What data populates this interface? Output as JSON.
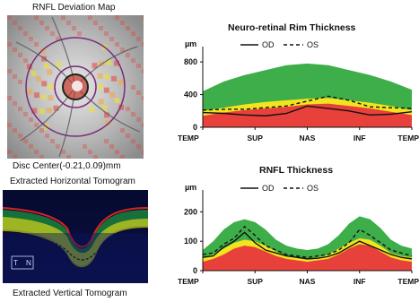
{
  "left_panel": {
    "deviation_map_title": "RNFL Deviation Map",
    "disc_center_label": "Disc Center(-0.21,0.09)mm",
    "horizontal_tomogram_title": "Extracted Horizontal Tomogram",
    "vertical_tomogram_title": "Extracted Vertical Tomogram",
    "orientation_t": "T",
    "orientation_n": "N"
  },
  "colors": {
    "normal_band": "#3dae49",
    "borderline_band": "#f2e41e",
    "abnormal_band": "#e8403a",
    "trace": "#111111",
    "circle": "#7a2a7a"
  },
  "chart_data": [
    {
      "type": "area",
      "title": "Neuro-retinal Rim Thickness",
      "ylabel": "µm",
      "categories": [
        "TEMP",
        "SUP",
        "NAS",
        "INF",
        "TEMP"
      ],
      "yticks": [
        0,
        400,
        800
      ],
      "ylim": [
        0,
        900
      ],
      "legend": [
        {
          "name": "OD",
          "style": "solid"
        },
        {
          "name": "OS",
          "style": "dashed"
        }
      ],
      "legend_position": "top",
      "x": [
        0,
        10,
        20,
        30,
        40,
        50,
        60,
        70,
        80,
        90,
        100
      ],
      "bands": {
        "abnormal_top": [
          140,
          180,
          210,
          230,
          250,
          280,
          290,
          260,
          230,
          190,
          150
        ],
        "borderline_top": [
          200,
          240,
          280,
          310,
          330,
          350,
          360,
          330,
          300,
          260,
          210
        ],
        "normal_top": [
          440,
          560,
          640,
          700,
          760,
          780,
          760,
          700,
          640,
          560,
          460
        ]
      },
      "series": [
        {
          "name": "OD",
          "values": [
            180,
            170,
            150,
            140,
            170,
            260,
            230,
            200,
            150,
            160,
            190
          ]
        },
        {
          "name": "OS",
          "values": [
            210,
            220,
            220,
            240,
            260,
            320,
            380,
            330,
            250,
            240,
            230
          ]
        }
      ]
    },
    {
      "type": "area",
      "title": "RNFL Thickness",
      "ylabel": "µm",
      "categories": [
        "TEMP",
        "SUP",
        "NAS",
        "INF",
        "TEMP"
      ],
      "yticks": [
        0,
        100,
        200
      ],
      "ylim": [
        0,
        250
      ],
      "legend": [
        {
          "name": "OD",
          "style": "solid"
        },
        {
          "name": "OS",
          "style": "dashed"
        }
      ],
      "legend_position": "top",
      "x": [
        0,
        5,
        10,
        15,
        20,
        25,
        30,
        35,
        40,
        45,
        50,
        55,
        60,
        65,
        70,
        75,
        80,
        85,
        90,
        95,
        100
      ],
      "bands": {
        "abnormal_top": [
          30,
          40,
          55,
          75,
          85,
          80,
          65,
          50,
          40,
          35,
          30,
          35,
          40,
          55,
          75,
          90,
          85,
          65,
          45,
          35,
          30
        ],
        "borderline_top": [
          45,
          55,
          75,
          95,
          105,
          100,
          85,
          65,
          50,
          45,
          40,
          45,
          55,
          75,
          95,
          110,
          105,
          85,
          60,
          50,
          45
        ],
        "normal_top": [
          70,
          100,
          140,
          165,
          175,
          165,
          140,
          105,
          85,
          75,
          70,
          75,
          90,
          120,
          160,
          185,
          175,
          145,
          105,
          85,
          75
        ]
      },
      "series": [
        {
          "name": "OD",
          "values": [
            45,
            50,
            80,
            100,
            130,
            95,
            70,
            60,
            50,
            45,
            40,
            42,
            48,
            60,
            80,
            100,
            85,
            70,
            55,
            45,
            40
          ]
        },
        {
          "name": "OS",
          "values": [
            55,
            60,
            90,
            110,
            150,
            120,
            85,
            70,
            55,
            50,
            45,
            50,
            55,
            70,
            95,
            140,
            120,
            95,
            70,
            60,
            50
          ]
        }
      ]
    }
  ]
}
